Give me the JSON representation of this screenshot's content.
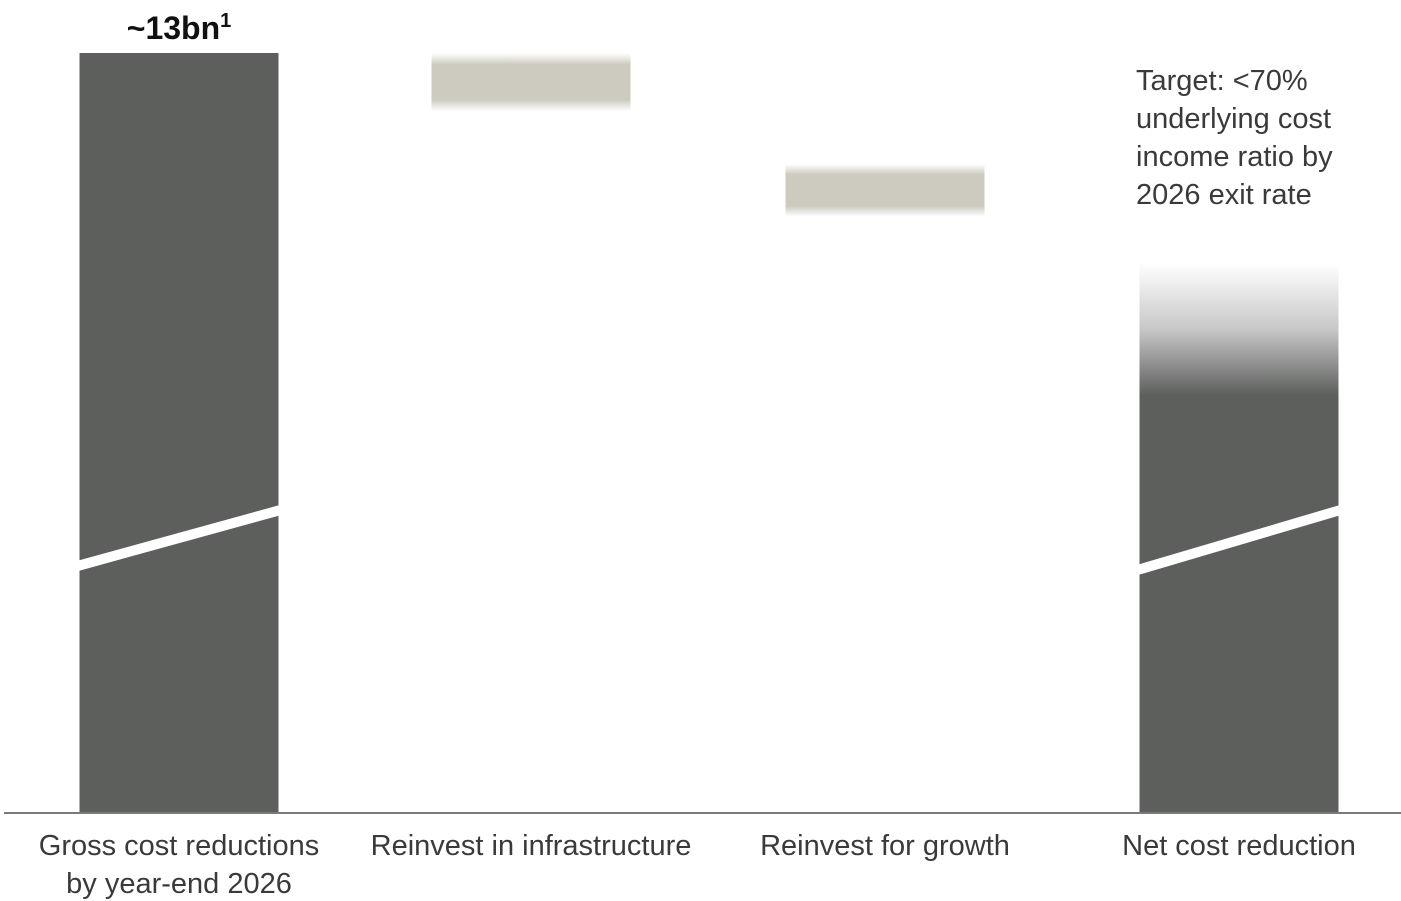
{
  "chart_data": {
    "type": "bar",
    "subtype": "waterfall",
    "categories": [
      [
        "Gross cost reductions",
        "by year-end 2026"
      ],
      [
        "Reinvest in infrastructure"
      ],
      [
        "Reinvest for growth"
      ],
      [
        "Net cost reduction"
      ]
    ],
    "bars": [
      {
        "kind": "total",
        "start": 0,
        "end": 13,
        "color": "#5d5f5d",
        "value_label": "~13bn",
        "value_label_sup": "1",
        "axis_break": true
      },
      {
        "kind": "delta",
        "start": 13,
        "end": 12.0,
        "color": "#cdcbbf",
        "faded": true
      },
      {
        "kind": "delta",
        "start": 11.1,
        "end": 10.2,
        "color": "#cdcbbf",
        "faded": true
      },
      {
        "kind": "total",
        "start": 0,
        "end": 9.4,
        "color": "#5d5f5d",
        "faded_top": true,
        "axis_break": true
      }
    ],
    "annotation": [
      "Target: <70%",
      "underlying cost",
      "income ratio by",
      "2026 exit rate"
    ],
    "ylim": [
      0,
      13
    ],
    "grid": false,
    "legend": "none"
  }
}
